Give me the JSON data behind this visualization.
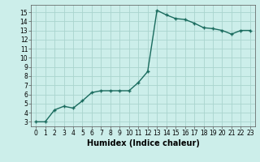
{
  "x": [
    0,
    1,
    2,
    3,
    4,
    5,
    6,
    7,
    8,
    9,
    10,
    11,
    12,
    13,
    14,
    15,
    16,
    17,
    18,
    19,
    20,
    21,
    22,
    23
  ],
  "y": [
    3.0,
    3.0,
    4.3,
    4.7,
    4.5,
    5.3,
    6.2,
    6.4,
    6.4,
    6.4,
    6.4,
    7.3,
    8.5,
    15.2,
    14.7,
    14.3,
    14.2,
    13.8,
    13.3,
    13.2,
    13.0,
    12.6,
    13.0,
    13.0
  ],
  "line_color": "#1a6b5e",
  "marker": "+",
  "marker_size": 3,
  "bg_color": "#cceeea",
  "grid_color": "#aad4ce",
  "xlabel": "Humidex (Indice chaleur)",
  "xlim": [
    -0.5,
    23.5
  ],
  "ylim": [
    2.5,
    15.8
  ],
  "xticks": [
    0,
    1,
    2,
    3,
    4,
    5,
    6,
    7,
    8,
    9,
    10,
    11,
    12,
    13,
    14,
    15,
    16,
    17,
    18,
    19,
    20,
    21,
    22,
    23
  ],
  "yticks": [
    3,
    4,
    5,
    6,
    7,
    8,
    9,
    10,
    11,
    12,
    13,
    14,
    15
  ],
  "tick_fontsize": 5.5,
  "xlabel_fontsize": 7,
  "line_width": 1.0
}
